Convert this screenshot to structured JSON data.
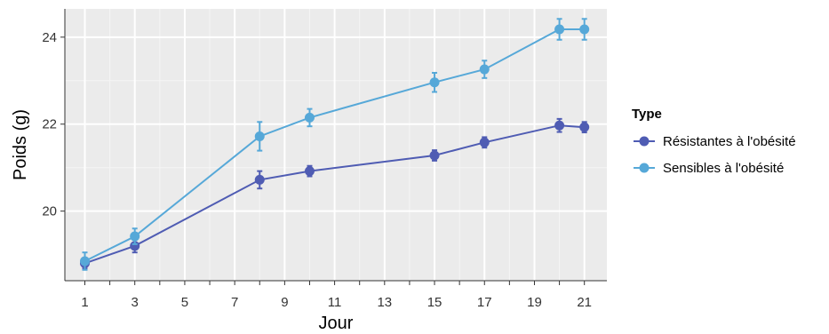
{
  "chart_data": {
    "type": "line",
    "xlabel": "Jour",
    "ylabel": "Poids (g)",
    "xlim": [
      0.2,
      21.9
    ],
    "ylim": [
      18.4,
      24.65
    ],
    "x_ticks": [
      1,
      3,
      5,
      7,
      9,
      11,
      13,
      15,
      17,
      19,
      21
    ],
    "y_ticks": [
      20,
      22,
      24
    ],
    "legend_title": "Type",
    "legend_position": "right",
    "grid": true,
    "panel_background": "#ebebeb",
    "series": [
      {
        "name": "Résistantes à l'obésité",
        "color": "#4f5cb3",
        "points": [
          {
            "x": 1,
            "y": 18.8,
            "err": 0.12
          },
          {
            "x": 3,
            "y": 19.2,
            "err": 0.15
          },
          {
            "x": 8,
            "y": 20.72,
            "err": 0.2
          },
          {
            "x": 10,
            "y": 20.92,
            "err": 0.12
          },
          {
            "x": 15,
            "y": 21.28,
            "err": 0.12
          },
          {
            "x": 17,
            "y": 21.58,
            "err": 0.12
          },
          {
            "x": 20,
            "y": 21.97,
            "err": 0.15
          },
          {
            "x": 21,
            "y": 21.93,
            "err": 0.12
          }
        ]
      },
      {
        "name": "Sensibles à l'obésité",
        "color": "#56a8d8",
        "points": [
          {
            "x": 1,
            "y": 18.85,
            "err": 0.2
          },
          {
            "x": 3,
            "y": 19.42,
            "err": 0.18
          },
          {
            "x": 8,
            "y": 21.72,
            "err": 0.33
          },
          {
            "x": 10,
            "y": 22.15,
            "err": 0.2
          },
          {
            "x": 15,
            "y": 22.96,
            "err": 0.22
          },
          {
            "x": 17,
            "y": 23.26,
            "err": 0.2
          },
          {
            "x": 20,
            "y": 24.18,
            "err": 0.24
          },
          {
            "x": 21,
            "y": 24.18,
            "err": 0.24
          }
        ]
      }
    ]
  }
}
